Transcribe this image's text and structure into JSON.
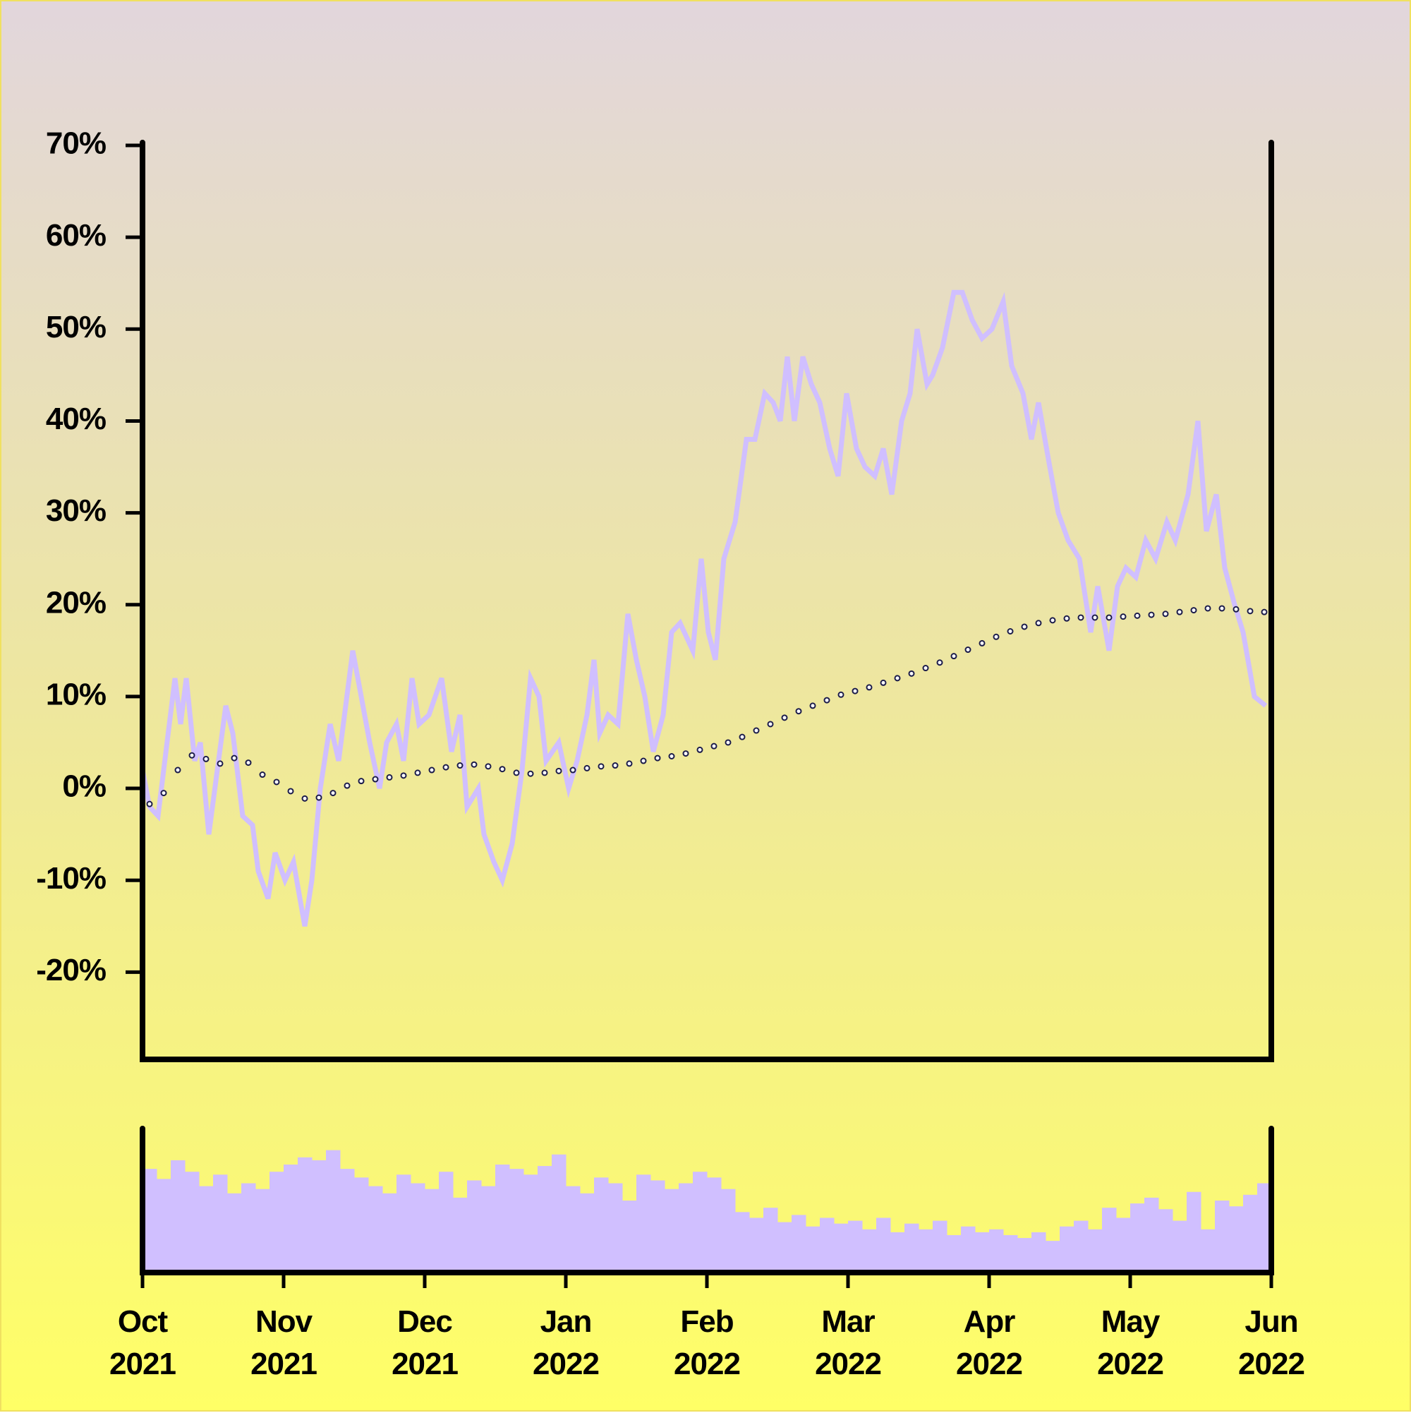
{
  "chart_data": {
    "type": "line",
    "xlim": [
      0,
      8
    ],
    "xticks": [
      {
        "value": 0,
        "label": "Oct 2021"
      },
      {
        "value": 1,
        "label": "Nov 2021"
      },
      {
        "value": 2,
        "label": "Dec 2021"
      },
      {
        "value": 3,
        "label": "Jan 2022"
      },
      {
        "value": 4,
        "label": "Feb 2022"
      },
      {
        "value": 5,
        "label": "Mar 2022"
      },
      {
        "value": 6,
        "label": "Apr 2022"
      },
      {
        "value": 7,
        "label": "May 2022"
      },
      {
        "value": 8,
        "label": "Jun 2022"
      }
    ],
    "ylim": [
      -29.5,
      70
    ],
    "yticks": [
      {
        "value": 70,
        "label": "70%"
      },
      {
        "value": 60,
        "label": "60%"
      },
      {
        "value": 50,
        "label": "50%"
      },
      {
        "value": 40,
        "label": "40%"
      },
      {
        "value": 30,
        "label": "30%"
      },
      {
        "value": 20,
        "label": "20%"
      },
      {
        "value": 10,
        "label": "10%"
      },
      {
        "value": 0,
        "label": "0%"
      },
      {
        "value": -10,
        "label": "-10%"
      },
      {
        "value": -20,
        "label": "-20%"
      }
    ],
    "x": [
      0,
      0.05,
      0.11,
      0.23,
      0.27,
      0.31,
      0.37,
      0.41,
      0.47,
      0.53,
      0.59,
      0.64,
      0.71,
      0.78,
      0.82,
      0.89,
      0.94,
      1.01,
      1.07,
      1.15,
      1.2,
      1.26,
      1.33,
      1.39,
      1.49,
      1.55,
      1.61,
      1.68,
      1.73,
      1.8,
      1.85,
      1.91,
      1.96,
      2.03,
      2.12,
      2.19,
      2.25,
      2.3,
      2.38,
      2.42,
      2.49,
      2.55,
      2.62,
      2.69,
      2.75,
      2.81,
      2.86,
      2.95,
      3.02,
      3.08,
      3.15,
      3.2,
      3.24,
      3.3,
      3.37,
      3.44,
      3.5,
      3.56,
      3.62,
      3.69,
      3.75,
      3.81,
      3.9,
      3.96,
      4.01,
      4.06,
      4.12,
      4.2,
      4.28,
      4.34,
      4.41,
      4.47,
      4.52,
      4.57,
      4.62,
      4.68,
      4.74,
      4.8,
      4.87,
      4.93,
      4.99,
      5.06,
      5.12,
      5.19,
      5.25,
      5.31,
      5.38,
      5.44,
      5.49,
      5.56,
      5.6,
      5.67,
      5.75,
      5.81,
      5.88,
      5.95,
      6.02,
      6.1,
      6.16,
      6.24,
      6.3,
      6.35,
      6.43,
      6.49,
      6.56,
      6.64,
      6.72,
      6.77,
      6.85,
      6.91,
      6.97,
      7.04,
      7.11,
      7.18,
      7.26,
      7.32,
      7.41,
      7.48,
      7.54,
      7.61,
      7.67,
      7.74,
      7.8,
      7.88,
      7.96
    ],
    "series": [
      {
        "color": "#d0bfff",
        "values": [
          2,
          -2,
          -3,
          12,
          7,
          12,
          3,
          5,
          -5,
          2,
          9,
          6,
          -3,
          -4,
          -9,
          -12,
          -7,
          -10,
          -8,
          -15,
          -10,
          0,
          7,
          3,
          15,
          10,
          5,
          0,
          5,
          7,
          3,
          12,
          7,
          8,
          12,
          4,
          8,
          -2,
          0,
          -5,
          -8,
          -10,
          -6,
          2,
          12,
          10,
          3,
          5,
          0,
          3,
          8,
          14,
          6,
          8,
          7,
          19,
          14,
          10,
          4,
          8,
          17,
          18,
          15,
          25,
          17,
          14,
          25,
          29,
          38,
          38,
          43,
          42,
          40,
          47,
          40,
          47,
          44,
          42,
          37,
          34,
          43,
          37,
          35,
          34,
          37,
          32,
          40,
          43,
          50,
          44,
          45,
          48,
          54,
          54,
          51,
          49,
          50,
          53,
          46,
          43,
          38,
          42,
          35,
          30,
          27,
          25,
          17,
          22,
          15,
          22,
          24,
          23,
          27,
          25,
          29,
          27,
          32,
          40,
          28,
          32,
          24,
          20,
          17,
          10,
          9
        ]
      }
    ],
    "moving_average": {
      "color": "#1c1c4a",
      "x": [
        0.05,
        0.15,
        0.25,
        0.35,
        0.45,
        0.55,
        0.65,
        0.75,
        0.85,
        0.95,
        1.05,
        1.15,
        1.25,
        1.35,
        1.45,
        1.55,
        1.65,
        1.75,
        1.85,
        1.95,
        2.05,
        2.15,
        2.25,
        2.35,
        2.45,
        2.55,
        2.65,
        2.75,
        2.85,
        2.95,
        3.05,
        3.15,
        3.25,
        3.35,
        3.45,
        3.55,
        3.65,
        3.75,
        3.85,
        3.95,
        4.05,
        4.15,
        4.25,
        4.35,
        4.45,
        4.55,
        4.65,
        4.75,
        4.85,
        4.95,
        5.05,
        5.15,
        5.25,
        5.35,
        5.45,
        5.55,
        5.65,
        5.75,
        5.85,
        5.95,
        6.05,
        6.15,
        6.25,
        6.35,
        6.45,
        6.55,
        6.65,
        6.75,
        6.85,
        6.95,
        7.05,
        7.15,
        7.25,
        7.35,
        7.45,
        7.55,
        7.65,
        7.75,
        7.85,
        7.95
      ],
      "values": [
        -1.7,
        -0.5,
        2,
        3.6,
        3.2,
        2.7,
        3.3,
        2.8,
        1.5,
        0.7,
        -0.3,
        -1.1,
        -1,
        -0.5,
        0.3,
        0.8,
        1,
        1.2,
        1.4,
        1.7,
        2,
        2.3,
        2.5,
        2.6,
        2.4,
        2.1,
        1.7,
        1.6,
        1.7,
        1.9,
        2,
        2.2,
        2.4,
        2.5,
        2.7,
        3,
        3.3,
        3.5,
        3.8,
        4.2,
        4.6,
        5,
        5.6,
        6.3,
        7,
        7.7,
        8.4,
        9,
        9.6,
        10.2,
        10.6,
        11,
        11.5,
        12,
        12.5,
        13.1,
        13.7,
        14.4,
        15.1,
        15.8,
        16.5,
        17.1,
        17.6,
        18,
        18.3,
        18.5,
        18.6,
        18.6,
        18.6,
        18.7,
        18.8,
        18.9,
        19,
        19.2,
        19.4,
        19.6,
        19.6,
        19.5,
        19.3,
        19.2
      ]
    },
    "volume": {
      "color": "#d0bfff",
      "ylim": [
        0,
        100
      ],
      "x": [
        0.05,
        0.15,
        0.25,
        0.35,
        0.45,
        0.55,
        0.65,
        0.75,
        0.85,
        0.95,
        1.05,
        1.15,
        1.25,
        1.35,
        1.45,
        1.55,
        1.65,
        1.75,
        1.85,
        1.95,
        2.05,
        2.15,
        2.25,
        2.35,
        2.45,
        2.55,
        2.65,
        2.75,
        2.85,
        2.95,
        3.05,
        3.15,
        3.25,
        3.35,
        3.45,
        3.55,
        3.65,
        3.75,
        3.85,
        3.95,
        4.05,
        4.15,
        4.25,
        4.35,
        4.45,
        4.55,
        4.65,
        4.75,
        4.85,
        4.95,
        5.05,
        5.15,
        5.25,
        5.35,
        5.45,
        5.55,
        5.65,
        5.75,
        5.85,
        5.95,
        6.05,
        6.15,
        6.25,
        6.35,
        6.45,
        6.55,
        6.65,
        6.75,
        6.85,
        6.95,
        7.05,
        7.15,
        7.25,
        7.35,
        7.45,
        7.55,
        7.65,
        7.75,
        7.85,
        7.95
      ],
      "values": [
        72,
        65,
        78,
        70,
        60,
        68,
        55,
        62,
        58,
        70,
        75,
        80,
        78,
        85,
        72,
        66,
        60,
        55,
        68,
        62,
        58,
        70,
        52,
        64,
        60,
        75,
        72,
        68,
        74,
        82,
        60,
        55,
        66,
        62,
        50,
        68,
        64,
        58,
        62,
        70,
        66,
        58,
        42,
        38,
        45,
        35,
        40,
        32,
        38,
        34,
        36,
        30,
        38,
        28,
        34,
        30,
        36,
        26,
        32,
        28,
        30,
        26,
        24,
        28,
        22,
        32,
        36,
        30,
        45,
        38,
        48,
        52,
        44,
        36,
        56,
        30,
        50,
        46,
        54,
        62
      ]
    }
  }
}
